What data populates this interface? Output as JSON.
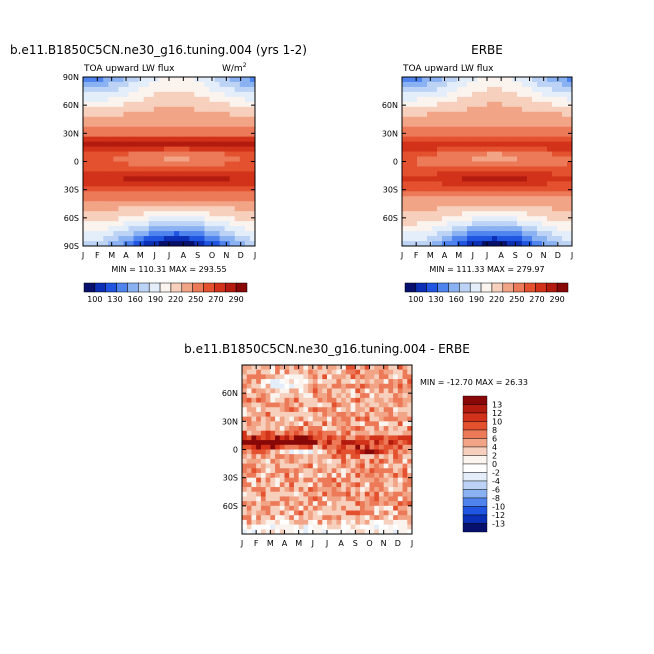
{
  "panels": [
    {
      "title": "b.e11.B1850C5CN.ne30_g16.tuning.004 (yrs 1-2)",
      "left_label": "TOA upward LW flux",
      "right_label": "W/m",
      "right_label_sup": "2",
      "stats": "MIN = 110.31  MAX = 293.55",
      "min": 110.31,
      "max": 293.55,
      "yticks": [
        "90N",
        "60N",
        "30N",
        "0",
        "30S",
        "60S",
        "90S"
      ]
    },
    {
      "title": "ERBE",
      "left_label": "TOA upward LW flux",
      "right_label": "",
      "right_label_sup": "",
      "stats": "MIN = 111.33  MAX = 279.97",
      "min": 111.33,
      "max": 279.97,
      "yticks": [
        "",
        "60N",
        "30N",
        "0",
        "30S",
        "60S",
        ""
      ]
    },
    {
      "title": "b.e11.B1850C5CN.ne30_g16.tuning.004 - ERBE",
      "stats": "MIN = -12.70 MAX =  26.33",
      "min": -12.7,
      "max": 26.33,
      "yticks": [
        "",
        "60N",
        "30N",
        "0",
        "30S",
        "60S",
        ""
      ]
    }
  ],
  "months": [
    "J",
    "F",
    "M",
    "A",
    "M",
    "J",
    "J",
    "A",
    "S",
    "O",
    "N",
    "D",
    "J"
  ],
  "colorbar_top": {
    "labels": [
      "100",
      "130",
      "160",
      "190",
      "220",
      "250",
      "270",
      "290"
    ],
    "colors": [
      "#08106e",
      "#0b2fb5",
      "#1f55e0",
      "#4f83ee",
      "#8ab2f2",
      "#bcd3f5",
      "#e3eefa",
      "#fbf3ee",
      "#f7d0bd",
      "#f2a486",
      "#ec7a58",
      "#e3512f",
      "#d13219",
      "#b21b0e",
      "#880808"
    ]
  },
  "colorbar_diff": {
    "labels": [
      "13",
      "12",
      "10",
      "8",
      "6",
      "4",
      "2",
      "0",
      "-2",
      "-4",
      "-6",
      "-8",
      "-10",
      "-12",
      "-13"
    ],
    "colors": [
      "#880808",
      "#b21b0e",
      "#d13219",
      "#e3512f",
      "#ec7a58",
      "#f2a486",
      "#f7d0bd",
      "#fbf3ee",
      "#ffffff",
      "#e3eefa",
      "#bcd3f5",
      "#8ab2f2",
      "#4f83ee",
      "#1f55e0",
      "#0b2fb5",
      "#08106e"
    ]
  },
  "chart_data": [
    {
      "type": "heatmap",
      "title": "b.e11.B1850C5CN.ne30_g16.tuning.004 (yrs 1-2)",
      "x": [
        "J",
        "F",
        "M",
        "A",
        "M",
        "J",
        "J",
        "A",
        "S",
        "O",
        "N",
        "D",
        "J"
      ],
      "y": [
        90,
        60,
        30,
        0,
        -30,
        -60,
        -90
      ],
      "zonal_mean_by_latitude": {
        "lat": [
          90,
          60,
          30,
          15,
          0,
          -20,
          -30,
          -60,
          -90
        ],
        "value": [
          165,
          210,
          245,
          265,
          250,
          270,
          255,
          200,
          125
        ]
      },
      "min": 110.31,
      "max": 293.55,
      "variable": "TOA upward LW flux",
      "units": "W/m2",
      "color_levels": [
        100,
        130,
        160,
        190,
        220,
        250,
        270,
        290
      ]
    },
    {
      "type": "heatmap",
      "title": "ERBE",
      "x": [
        "J",
        "F",
        "M",
        "A",
        "M",
        "J",
        "J",
        "A",
        "S",
        "O",
        "N",
        "D",
        "J"
      ],
      "y": [
        90,
        60,
        30,
        0,
        -30,
        -60,
        -90
      ],
      "zonal_mean_by_latitude": {
        "lat": [
          90,
          60,
          30,
          15,
          0,
          -20,
          -30,
          -60,
          -90
        ],
        "value": [
          165,
          212,
          245,
          260,
          248,
          265,
          250,
          202,
          128
        ]
      },
      "min": 111.33,
      "max": 279.97,
      "variable": "TOA upward LW flux",
      "units": "",
      "color_levels": [
        100,
        130,
        160,
        190,
        220,
        250,
        270,
        290
      ]
    },
    {
      "type": "heatmap",
      "title": "b.e11.B1850C5CN.ne30_g16.tuning.004 - ERBE",
      "x": [
        "J",
        "F",
        "M",
        "A",
        "M",
        "J",
        "J",
        "A",
        "S",
        "O",
        "N",
        "D",
        "J"
      ],
      "y": [
        90,
        60,
        30,
        0,
        -30,
        -60,
        -90
      ],
      "min": -12.7,
      "max": 26.33,
      "color_levels": [
        -13,
        -12,
        -10,
        -8,
        -6,
        -4,
        -2,
        0,
        2,
        4,
        6,
        8,
        10,
        12,
        13
      ]
    }
  ]
}
